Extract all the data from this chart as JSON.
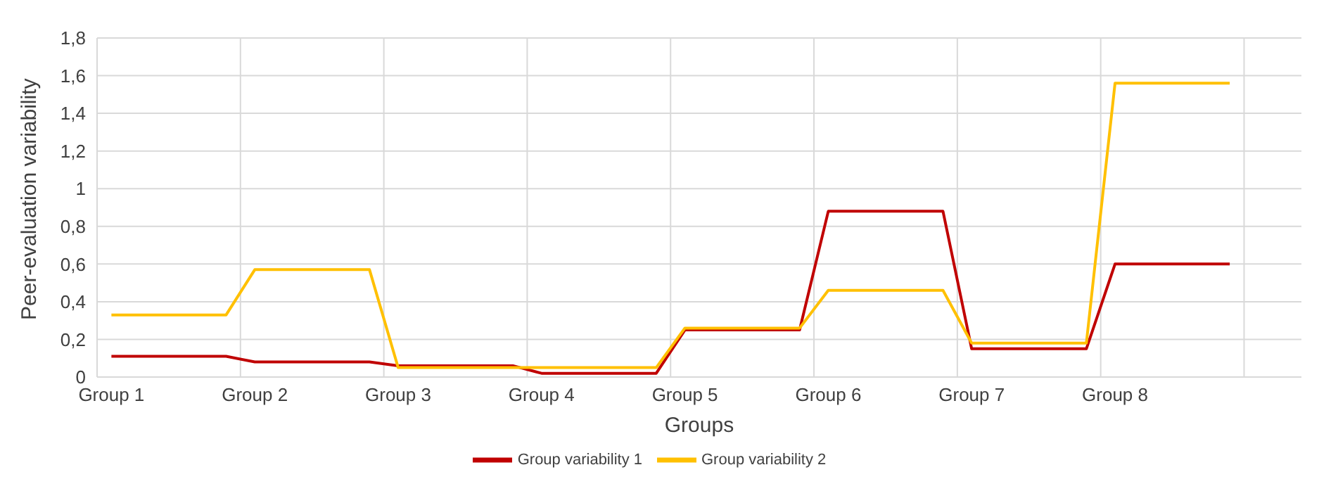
{
  "chart_data": {
    "type": "line",
    "xlabel": "Groups",
    "ylabel": "Peer-evaluation variability",
    "categories": [
      "Group 1",
      null,
      null,
      null,
      null,
      "Group 2",
      null,
      null,
      null,
      null,
      "Group 3",
      null,
      null,
      null,
      null,
      "Group 4",
      null,
      null,
      null,
      null,
      "Group 5",
      null,
      null,
      null,
      null,
      "Group 6",
      null,
      null,
      null,
      null,
      "Group 7",
      null,
      null,
      null,
      null,
      "Group 8",
      null,
      null,
      null,
      null,
      null,
      null
    ],
    "series": [
      {
        "name": "Group variability 1",
        "color": "#c00000",
        "values": [
          0.11,
          0.11,
          0.11,
          0.11,
          0.11,
          0.08,
          0.08,
          0.08,
          0.08,
          0.08,
          0.06,
          0.06,
          0.06,
          0.06,
          0.06,
          0.02,
          0.02,
          0.02,
          0.02,
          0.02,
          0.25,
          0.25,
          0.25,
          0.25,
          0.25,
          0.88,
          0.88,
          0.88,
          0.88,
          0.88,
          0.15,
          0.15,
          0.15,
          0.15,
          0.15,
          0.6,
          0.6,
          0.6,
          0.6,
          0.6,
          null,
          null
        ]
      },
      {
        "name": "Group variability 2",
        "color": "#ffc000",
        "values": [
          0.33,
          0.33,
          0.33,
          0.33,
          0.33,
          0.57,
          0.57,
          0.57,
          0.57,
          0.57,
          0.05,
          0.05,
          0.05,
          0.05,
          0.05,
          0.05,
          0.05,
          0.05,
          0.05,
          0.05,
          0.26,
          0.26,
          0.26,
          0.26,
          0.26,
          0.46,
          0.46,
          0.46,
          0.46,
          0.46,
          0.18,
          0.18,
          0.18,
          0.18,
          0.18,
          1.56,
          1.56,
          1.56,
          1.56,
          1.56,
          null,
          null
        ]
      }
    ],
    "ylim": [
      0,
      1.8
    ],
    "yticks": [
      0,
      {
        "value": 0.2,
        "label": "0,2"
      },
      {
        "value": 0.4,
        "label": "0,4"
      },
      {
        "value": 0.6,
        "label": "0,6"
      },
      {
        "value": 0.8,
        "label": "0,8"
      },
      1,
      {
        "value": 1.2,
        "label": "1,2"
      },
      {
        "value": 1.4,
        "label": "1,4"
      },
      {
        "value": 1.6,
        "label": "1,6"
      },
      {
        "value": 1.8,
        "label": "1,8"
      }
    ],
    "grid": true,
    "legend": "bottom",
    "marker": "none",
    "line_style": "solid"
  }
}
